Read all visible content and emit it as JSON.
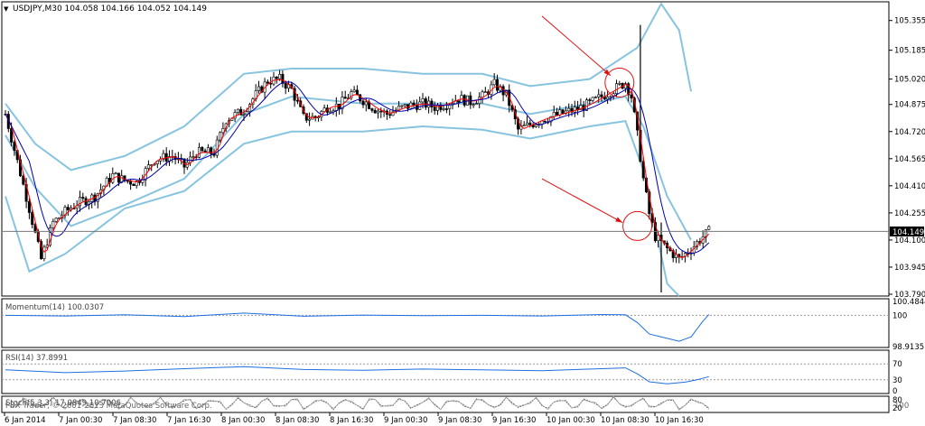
{
  "chart_data": {
    "type": "candlestick",
    "symbol_header": "USDJPY,M30  104.058 104.166 104.052 104.149",
    "current_price_label": "104.149",
    "current_price": 104.149,
    "ylim": [
      103.79,
      105.4
    ],
    "y_ticks": [
      "105.355",
      "105.185",
      "105.020",
      "104.875",
      "104.720",
      "104.565",
      "104.410",
      "104.255",
      "104.100",
      "103.945",
      "103.790"
    ],
    "y_tick_values": [
      105.355,
      105.185,
      105.02,
      104.875,
      104.72,
      104.565,
      104.41,
      104.255,
      104.1,
      103.945,
      103.79
    ],
    "x_ticks": [
      "6 Jan 2014",
      "7 Jan 00:30",
      "7 Jan 08:30",
      "7 Jan 16:30",
      "8 Jan 00:30",
      "8 Jan 08:30",
      "8 Jan 16:30",
      "9 Jan 00:30",
      "9 Jan 08:30",
      "9 Jan 16:30",
      "10 Jan 00:30",
      "10 Jan 08:30",
      "10 Jan 16:30"
    ],
    "close_path": [
      [
        0,
        104.82
      ],
      [
        4,
        104.55
      ],
      [
        8,
        104.28
      ],
      [
        12,
        103.99
      ],
      [
        16,
        104.2
      ],
      [
        20,
        104.26
      ],
      [
        24,
        104.31
      ],
      [
        30,
        104.35
      ],
      [
        36,
        104.47
      ],
      [
        40,
        104.44
      ],
      [
        44,
        104.43
      ],
      [
        50,
        104.56
      ],
      [
        56,
        104.58
      ],
      [
        60,
        104.52
      ],
      [
        64,
        104.6
      ],
      [
        70,
        104.6
      ],
      [
        74,
        104.79
      ],
      [
        80,
        104.84
      ],
      [
        84,
        104.93
      ],
      [
        88,
        105.01
      ],
      [
        92,
        105.02
      ],
      [
        96,
        104.96
      ],
      [
        100,
        104.8
      ],
      [
        104,
        104.8
      ],
      [
        108,
        104.86
      ],
      [
        112,
        104.87
      ],
      [
        116,
        104.94
      ],
      [
        120,
        104.9
      ],
      [
        124,
        104.85
      ],
      [
        128,
        104.82
      ],
      [
        132,
        104.85
      ],
      [
        136,
        104.87
      ],
      [
        140,
        104.88
      ],
      [
        144,
        104.86
      ],
      [
        148,
        104.88
      ],
      [
        152,
        104.91
      ],
      [
        156,
        104.89
      ],
      [
        160,
        104.92
      ],
      [
        164,
        104.99
      ],
      [
        168,
        104.93
      ],
      [
        172,
        104.73
      ],
      [
        176,
        104.76
      ],
      [
        180,
        104.79
      ],
      [
        184,
        104.81
      ],
      [
        188,
        104.83
      ],
      [
        192,
        104.85
      ],
      [
        196,
        104.88
      ],
      [
        200,
        104.92
      ],
      [
        204,
        104.96
      ],
      [
        208,
        105.0
      ],
      [
        210,
        104.92
      ],
      [
        212,
        104.7
      ],
      [
        214,
        104.45
      ],
      [
        216,
        104.25
      ],
      [
        218,
        104.12
      ],
      [
        222,
        104.05
      ],
      [
        226,
        103.99
      ],
      [
        230,
        104.05
      ],
      [
        234,
        104.12
      ],
      [
        236,
        104.149
      ]
    ],
    "bollinger_upper": [
      [
        0,
        104.88
      ],
      [
        10,
        104.65
      ],
      [
        22,
        104.5
      ],
      [
        40,
        104.58
      ],
      [
        60,
        104.75
      ],
      [
        80,
        105.05
      ],
      [
        96,
        105.08
      ],
      [
        120,
        105.08
      ],
      [
        140,
        105.05
      ],
      [
        160,
        105.05
      ],
      [
        176,
        104.98
      ],
      [
        196,
        105.02
      ],
      [
        212,
        105.2
      ],
      [
        220,
        105.45
      ],
      [
        226,
        105.3
      ],
      [
        230,
        104.95
      ]
    ],
    "bollinger_lower": [
      [
        0,
        104.35
      ],
      [
        8,
        103.92
      ],
      [
        20,
        104.02
      ],
      [
        40,
        104.28
      ],
      [
        60,
        104.38
      ],
      [
        80,
        104.65
      ],
      [
        96,
        104.72
      ],
      [
        120,
        104.72
      ],
      [
        140,
        104.75
      ],
      [
        160,
        104.73
      ],
      [
        176,
        104.68
      ],
      [
        196,
        104.75
      ],
      [
        208,
        104.78
      ],
      [
        214,
        104.5
      ],
      [
        222,
        103.85
      ],
      [
        226,
        103.78
      ]
    ],
    "bollinger_mid": [
      [
        0,
        104.7
      ],
      [
        10,
        104.4
      ],
      [
        22,
        104.18
      ],
      [
        40,
        104.3
      ],
      [
        60,
        104.45
      ],
      [
        80,
        104.82
      ],
      [
        96,
        104.92
      ],
      [
        120,
        104.88
      ],
      [
        140,
        104.88
      ],
      [
        160,
        104.88
      ],
      [
        176,
        104.82
      ],
      [
        196,
        104.88
      ],
      [
        208,
        104.92
      ],
      [
        214,
        104.75
      ],
      [
        222,
        104.35
      ],
      [
        230,
        104.1
      ]
    ],
    "momentum": {
      "label": "Momentum(14) 100.0307",
      "ticks": [
        "100.4844",
        "100",
        "98.9135"
      ],
      "tick_values": [
        100.4844,
        100,
        98.9135
      ],
      "values": [
        [
          0,
          100.0
        ],
        [
          20,
          99.98
        ],
        [
          40,
          100.02
        ],
        [
          60,
          99.96
        ],
        [
          80,
          100.08
        ],
        [
          100,
          99.97
        ],
        [
          120,
          100.01
        ],
        [
          140,
          99.99
        ],
        [
          160,
          100.0
        ],
        [
          180,
          99.98
        ],
        [
          200,
          100.03
        ],
        [
          208,
          100.02
        ],
        [
          212,
          99.75
        ],
        [
          216,
          99.35
        ],
        [
          222,
          99.2
        ],
        [
          226,
          99.1
        ],
        [
          230,
          99.25
        ],
        [
          234,
          99.8
        ],
        [
          236,
          100.0307
        ]
      ]
    },
    "rsi": {
      "label": "RSI(14) 37.8991",
      "ticks": [
        "70",
        "30",
        "0"
      ],
      "tick_values": [
        70,
        30,
        0
      ],
      "values": [
        [
          0,
          55
        ],
        [
          20,
          48
        ],
        [
          40,
          52
        ],
        [
          60,
          58
        ],
        [
          80,
          63
        ],
        [
          100,
          56
        ],
        [
          120,
          54
        ],
        [
          140,
          57
        ],
        [
          160,
          55
        ],
        [
          180,
          53
        ],
        [
          200,
          58
        ],
        [
          208,
          60
        ],
        [
          212,
          45
        ],
        [
          216,
          25
        ],
        [
          222,
          20
        ],
        [
          228,
          24
        ],
        [
          232,
          30
        ],
        [
          236,
          37.8991
        ]
      ]
    },
    "stochastic": {
      "label": "Stoch(5,3,3) 17.0849 10.7006",
      "ticks": [
        "80",
        "20"
      ],
      "tick_values": [
        80,
        20
      ]
    },
    "copyright": "FBX Trader, © 2001-2013 MetaQuotes Software Corp.",
    "corner_label": "100",
    "colors": {
      "candle": "#000000",
      "ma_fast": "#ff0000",
      "ma_slow": "#0000aa",
      "bollinger": "#87c4e0",
      "indicator": "#1e6fe0",
      "annotation": "#e01010",
      "separator": "#000000"
    },
    "annotations": [
      {
        "type": "circle",
        "x": 206,
        "y": 105.0
      },
      {
        "type": "circle",
        "x": 212,
        "y": 104.18
      },
      {
        "type": "arrow",
        "x_from": 180,
        "y_from": 105.38,
        "x_to": 203,
        "y_to": 105.04
      },
      {
        "type": "arrow",
        "x_from": 180,
        "y_from": 104.45,
        "x_to": 207,
        "y_to": 104.2
      }
    ]
  }
}
